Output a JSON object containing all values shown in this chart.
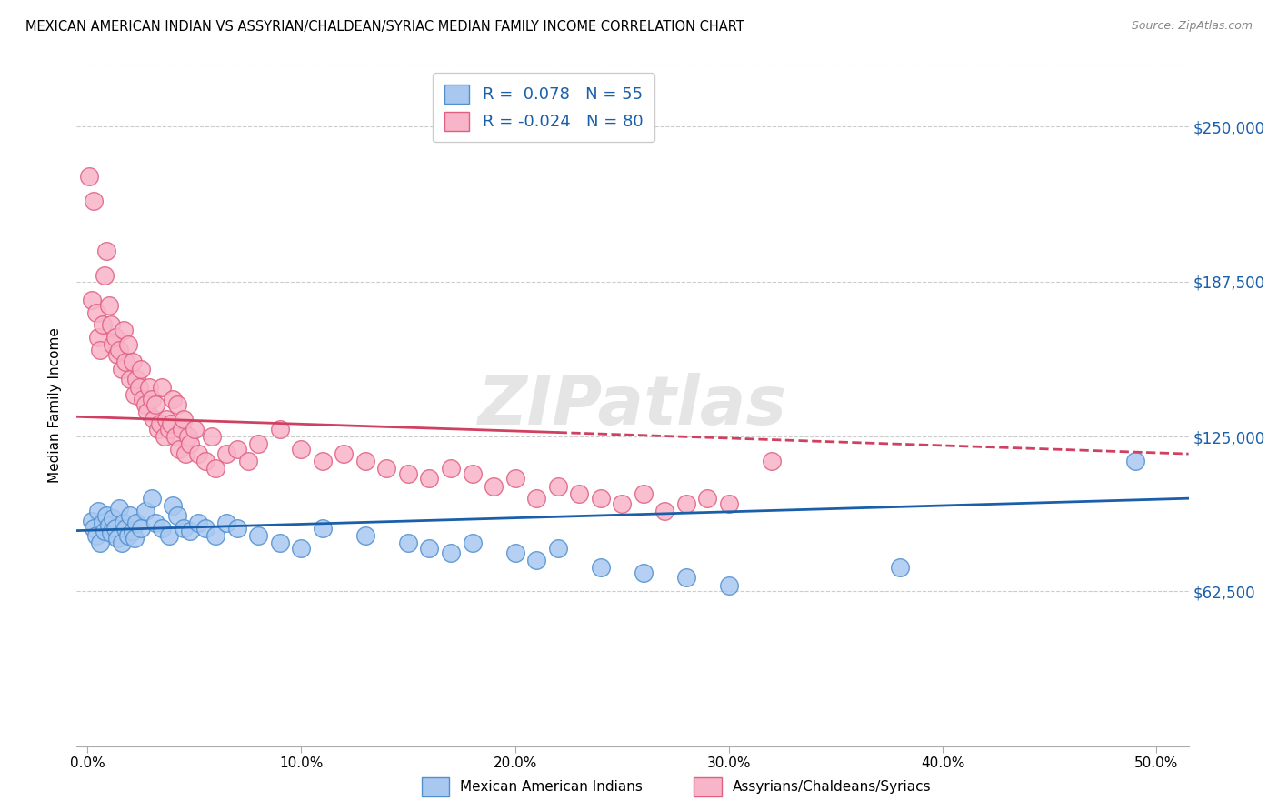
{
  "title": "MEXICAN AMERICAN INDIAN VS ASSYRIAN/CHALDEAN/SYRIAC MEDIAN FAMILY INCOME CORRELATION CHART",
  "source": "Source: ZipAtlas.com",
  "ylabel": "Median Family Income",
  "xlabel_ticks": [
    "0.0%",
    "10.0%",
    "20.0%",
    "30.0%",
    "40.0%",
    "50.0%"
  ],
  "xlabel_vals": [
    0.0,
    0.1,
    0.2,
    0.3,
    0.4,
    0.5
  ],
  "ytick_labels": [
    "$62,500",
    "$125,000",
    "$187,500",
    "$250,000"
  ],
  "ytick_vals": [
    62500,
    125000,
    187500,
    250000
  ],
  "ylim": [
    0,
    275000
  ],
  "xlim": [
    -0.005,
    0.515
  ],
  "watermark": "ZIPatlas",
  "blue_R": 0.078,
  "blue_N": 55,
  "pink_R": -0.024,
  "pink_N": 80,
  "blue_color": "#a8c8f0",
  "pink_color": "#f8b4c8",
  "blue_edge_color": "#5090d0",
  "pink_edge_color": "#e06080",
  "blue_line_color": "#1a5faa",
  "pink_line_color": "#d04060",
  "blue_scatter_x": [
    0.002,
    0.003,
    0.004,
    0.005,
    0.006,
    0.007,
    0.008,
    0.009,
    0.01,
    0.011,
    0.012,
    0.013,
    0.014,
    0.015,
    0.016,
    0.017,
    0.018,
    0.019,
    0.02,
    0.021,
    0.022,
    0.023,
    0.025,
    0.027,
    0.03,
    0.032,
    0.035,
    0.038,
    0.04,
    0.042,
    0.045,
    0.048,
    0.052,
    0.055,
    0.06,
    0.065,
    0.07,
    0.08,
    0.09,
    0.1,
    0.11,
    0.13,
    0.15,
    0.16,
    0.17,
    0.18,
    0.2,
    0.21,
    0.22,
    0.24,
    0.26,
    0.28,
    0.3,
    0.38,
    0.49
  ],
  "blue_scatter_y": [
    91000,
    88000,
    85000,
    95000,
    82000,
    90000,
    87000,
    93000,
    89000,
    86000,
    92000,
    88000,
    84000,
    96000,
    82000,
    90000,
    88000,
    85000,
    93000,
    87000,
    84000,
    90000,
    88000,
    95000,
    100000,
    90000,
    88000,
    85000,
    97000,
    93000,
    88000,
    87000,
    90000,
    88000,
    85000,
    90000,
    88000,
    85000,
    82000,
    80000,
    88000,
    85000,
    82000,
    80000,
    78000,
    82000,
    78000,
    75000,
    80000,
    72000,
    70000,
    68000,
    65000,
    72000,
    115000
  ],
  "pink_scatter_x": [
    0.001,
    0.002,
    0.003,
    0.004,
    0.005,
    0.006,
    0.007,
    0.008,
    0.009,
    0.01,
    0.011,
    0.012,
    0.013,
    0.014,
    0.015,
    0.016,
    0.017,
    0.018,
    0.019,
    0.02,
    0.021,
    0.022,
    0.023,
    0.024,
    0.025,
    0.026,
    0.027,
    0.028,
    0.029,
    0.03,
    0.031,
    0.032,
    0.033,
    0.034,
    0.035,
    0.036,
    0.037,
    0.038,
    0.039,
    0.04,
    0.041,
    0.042,
    0.043,
    0.044,
    0.045,
    0.046,
    0.047,
    0.048,
    0.05,
    0.052,
    0.055,
    0.058,
    0.06,
    0.065,
    0.07,
    0.075,
    0.08,
    0.09,
    0.1,
    0.11,
    0.12,
    0.13,
    0.14,
    0.15,
    0.16,
    0.17,
    0.18,
    0.19,
    0.2,
    0.21,
    0.22,
    0.23,
    0.24,
    0.25,
    0.26,
    0.27,
    0.28,
    0.29,
    0.3,
    0.32
  ],
  "pink_scatter_y": [
    230000,
    180000,
    220000,
    175000,
    165000,
    160000,
    170000,
    190000,
    200000,
    178000,
    170000,
    162000,
    165000,
    158000,
    160000,
    152000,
    168000,
    155000,
    162000,
    148000,
    155000,
    142000,
    148000,
    145000,
    152000,
    140000,
    138000,
    135000,
    145000,
    140000,
    132000,
    138000,
    128000,
    130000,
    145000,
    125000,
    132000,
    128000,
    130000,
    140000,
    125000,
    138000,
    120000,
    128000,
    132000,
    118000,
    125000,
    122000,
    128000,
    118000,
    115000,
    125000,
    112000,
    118000,
    120000,
    115000,
    122000,
    128000,
    120000,
    115000,
    118000,
    115000,
    112000,
    110000,
    108000,
    112000,
    110000,
    105000,
    108000,
    100000,
    105000,
    102000,
    100000,
    98000,
    102000,
    95000,
    98000,
    100000,
    98000,
    115000
  ]
}
